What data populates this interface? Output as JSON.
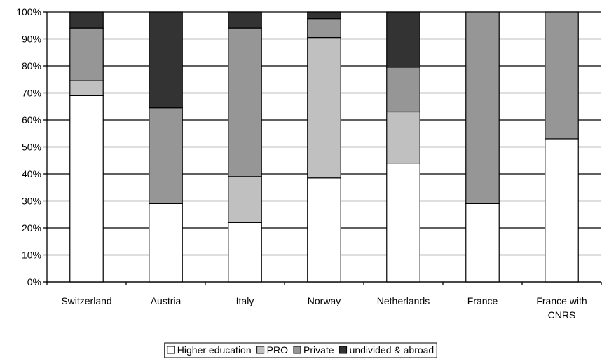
{
  "chart_data": {
    "type": "bar",
    "stacked": true,
    "percent": true,
    "title": "",
    "xlabel": "",
    "ylabel": "",
    "ylim": [
      0,
      100
    ],
    "yticks": [
      "0%",
      "10%",
      "20%",
      "30%",
      "40%",
      "50%",
      "60%",
      "70%",
      "80%",
      "90%",
      "100%"
    ],
    "categories": [
      [
        "Switzerland"
      ],
      [
        "Austria"
      ],
      [
        "Italy"
      ],
      [
        "Norway"
      ],
      [
        "Netherlands"
      ],
      [
        "France"
      ],
      [
        "France with",
        "CNRS"
      ]
    ],
    "series": [
      {
        "name": "Higher education",
        "color": "#ffffff",
        "values": [
          69,
          29,
          22,
          38.5,
          44,
          29,
          53
        ]
      },
      {
        "name": "PRO",
        "color": "#c0c0c0",
        "values": [
          5.5,
          0,
          17,
          52,
          19,
          0,
          0
        ]
      },
      {
        "name": "Private",
        "color": "#969696",
        "values": [
          19.5,
          35.5,
          55,
          7,
          16.5,
          71,
          47
        ]
      },
      {
        "name": "undivided & abroad",
        "color": "#333333",
        "values": [
          6,
          35.5,
          6,
          2.5,
          20.5,
          0,
          0
        ]
      }
    ],
    "grid": true,
    "legend_position": "bottom"
  }
}
